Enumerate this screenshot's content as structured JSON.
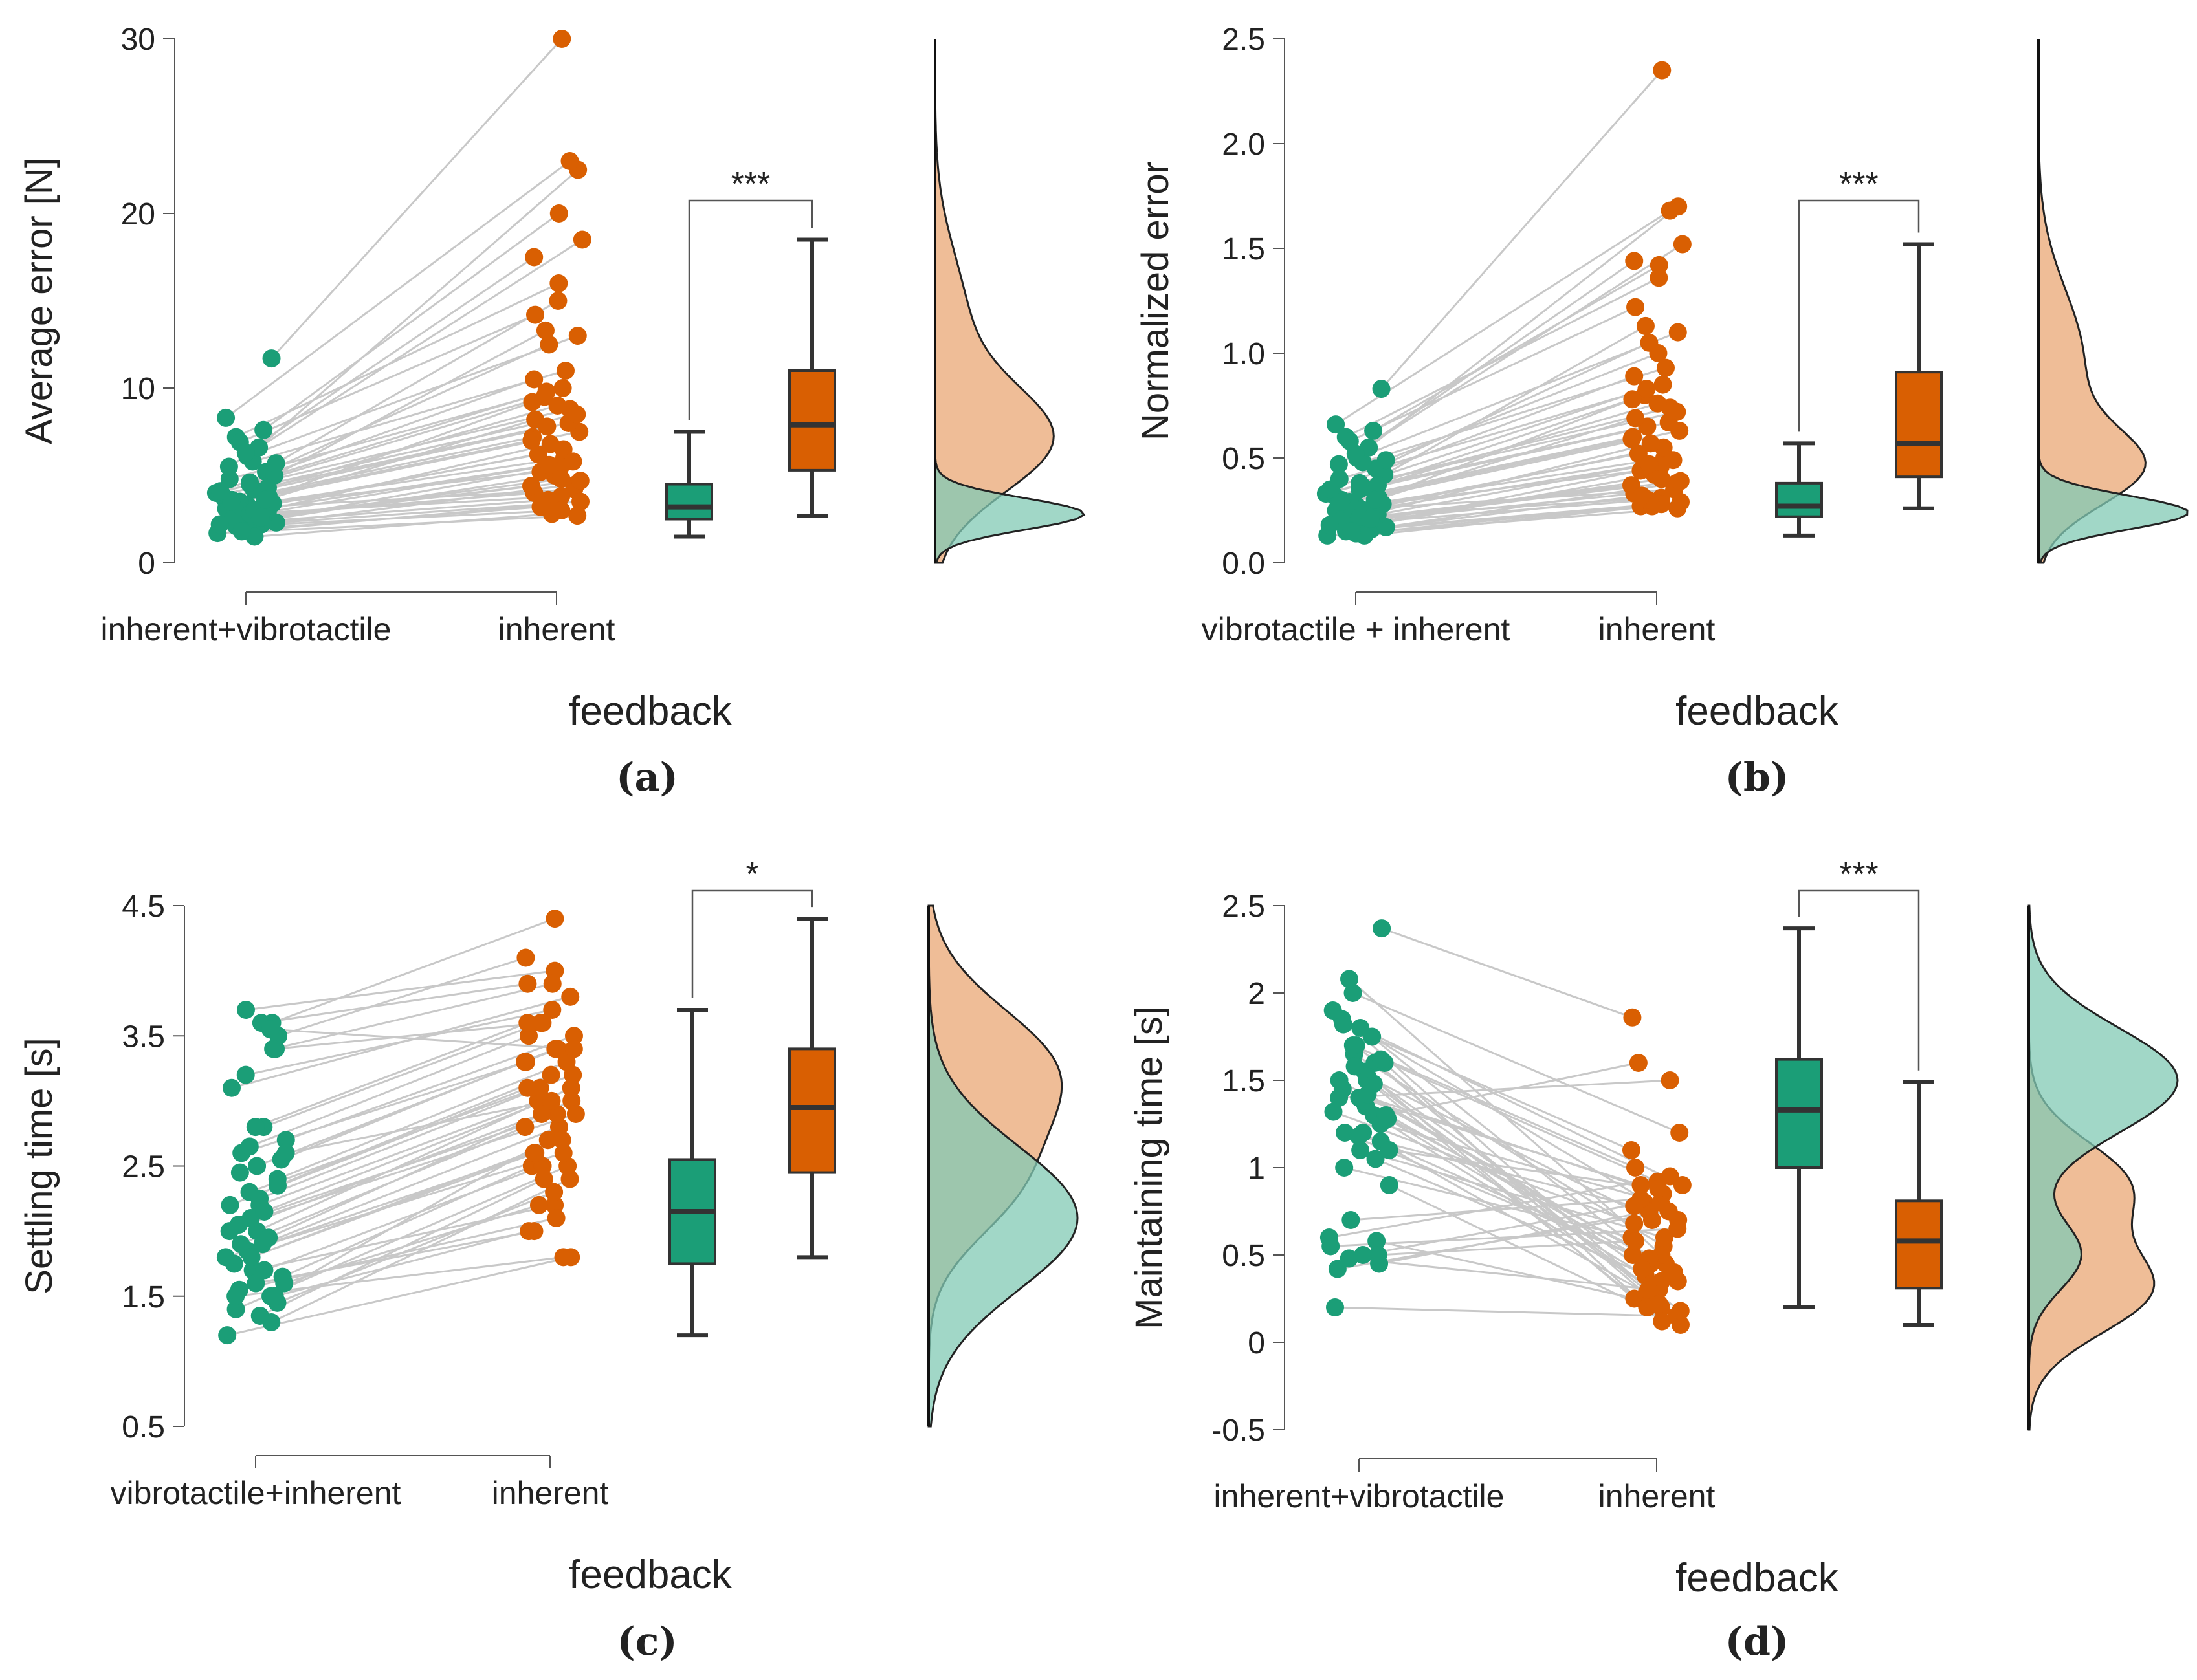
{
  "colors": {
    "group1": "#1b9e77",
    "group2": "#d95f02",
    "line": "#c8c8c8",
    "box_edge": "#333333",
    "axis": "#555555"
  },
  "chart_data": [
    {
      "type": "raincloud",
      "caption": "(a)",
      "ylabel": "Average error [N]",
      "xlabel": "feedback",
      "ylim": [
        0,
        30
      ],
      "yticks": [
        0,
        10,
        20,
        30
      ],
      "ytick_labels": [
        "0",
        "10",
        "20",
        "30"
      ],
      "categories": [
        "inherent+vibrotactile",
        "inherent"
      ],
      "significance": "***",
      "box": [
        {
          "min": 1.5,
          "q1": 2.5,
          "median": 3.2,
          "q3": 4.5,
          "max": 7.5
        },
        {
          "min": 2.7,
          "q1": 5.3,
          "median": 7.9,
          "q3": 11.0,
          "max": 18.5
        }
      ],
      "points": [
        [
          3.1,
          2.4,
          4.5,
          2.8,
          3.6,
          5.2,
          2.2,
          1.9,
          6.1,
          3.3,
          4.0,
          2.7,
          5.8,
          3.5,
          2.5,
          7.2,
          3.0,
          4.8,
          2.3,
          6.6,
          3.8,
          2.9,
          1.7,
          4.2,
          3.4,
          5.5,
          2.6,
          3.7,
          11.7,
          8.3,
          2.1,
          4.6,
          3.2,
          6.9,
          2.8,
          3.9,
          1.5,
          5.0,
          2.4,
          3.5,
          7.6,
          4.3,
          3.0,
          2.2,
          6.3,
          3.6,
          2.6,
          4.1,
          1.8,
          5.7
        ],
        [
          4.2,
          5.0,
          9.5,
          3.8,
          7.2,
          12.5,
          4.5,
          3.2,
          13.0,
          6.0,
          8.8,
          4.0,
          11.0,
          7.5,
          5.5,
          16.0,
          6.5,
          10.0,
          3.5,
          22.5,
          9.2,
          5.8,
          2.7,
          7.8,
          6.2,
          18.5,
          4.8,
          8.0,
          30.0,
          23.0,
          3.0,
          9.8,
          5.2,
          14.2,
          6.8,
          8.5,
          2.8,
          13.3,
          4.4,
          7.0,
          20.0,
          9.0,
          5.6,
          3.6,
          17.5,
          8.2,
          4.7,
          10.5,
          3.3,
          15.0
        ]
      ],
      "density": [
        {
          "peak": 2.8,
          "sd": 0.9,
          "weight": 1.0
        },
        {
          "peak": 7.0,
          "sd": 3.0,
          "weight": 0.75,
          "peak2": 14.0,
          "sd2": 4.0,
          "weight2": 0.2
        }
      ]
    },
    {
      "type": "raincloud",
      "caption": "(b)",
      "ylabel": "Normalized error",
      "xlabel": "feedback",
      "ylim": [
        0,
        2.5
      ],
      "yticks": [
        0,
        0.5,
        1.0,
        1.5,
        2.0,
        2.5
      ],
      "ytick_labels": [
        "0.0",
        "0.5",
        "1.0",
        "1.5",
        "2.0",
        "2.5"
      ],
      "categories": [
        "vibrotactile + inherent",
        "inherent"
      ],
      "significance": "***",
      "box": [
        {
          "min": 0.13,
          "q1": 0.22,
          "median": 0.27,
          "q3": 0.38,
          "max": 0.57
        },
        {
          "min": 0.26,
          "q1": 0.41,
          "median": 0.57,
          "q3": 0.91,
          "max": 1.52
        }
      ],
      "points": [
        [
          0.25,
          0.18,
          0.35,
          0.22,
          0.3,
          0.45,
          0.16,
          0.14,
          0.5,
          0.27,
          0.33,
          0.2,
          0.48,
          0.29,
          0.19,
          0.6,
          0.24,
          0.4,
          0.17,
          0.55,
          0.31,
          0.23,
          0.13,
          0.36,
          0.28,
          0.47,
          0.21,
          0.32,
          0.83,
          0.66,
          0.15,
          0.38,
          0.26,
          0.58,
          0.22,
          0.34,
          0.13,
          0.42,
          0.2,
          0.29,
          0.63,
          0.37,
          0.25,
          0.18,
          0.52,
          0.3,
          0.21,
          0.35,
          0.15,
          0.49
        ],
        [
          0.35,
          0.42,
          0.8,
          0.31,
          0.6,
          1.05,
          0.38,
          0.27,
          1.1,
          0.5,
          0.74,
          0.33,
          0.93,
          0.63,
          0.46,
          1.36,
          0.55,
          0.85,
          0.29,
          1.7,
          0.78,
          0.49,
          0.26,
          0.65,
          0.52,
          1.52,
          0.4,
          0.67,
          2.35,
          1.68,
          0.28,
          0.83,
          0.44,
          1.22,
          0.57,
          0.72,
          0.27,
          1.13,
          0.37,
          0.59,
          1.42,
          0.76,
          0.47,
          0.3,
          1.44,
          0.69,
          0.39,
          0.89,
          0.32,
          1.0
        ]
      ],
      "density": [
        {
          "peak": 0.24,
          "sd": 0.08,
          "weight": 1.0
        },
        {
          "peak": 0.45,
          "sd": 0.18,
          "weight": 0.6,
          "peak2": 0.95,
          "sd2": 0.35,
          "weight2": 0.3
        }
      ]
    },
    {
      "type": "raincloud",
      "caption": "(c)",
      "ylabel": "Settling time [s]",
      "xlabel": "feedback",
      "ylim": [
        0.5,
        4.5
      ],
      "yticks": [
        0.5,
        1.5,
        2.5,
        3.5,
        4.5
      ],
      "ytick_labels": [
        "0.5",
        "1.5",
        "2.5",
        "3.5",
        "4.5"
      ],
      "categories": [
        "vibrotactile+inherent",
        "inherent"
      ],
      "significance": "*",
      "box": [
        {
          "min": 1.2,
          "q1": 1.75,
          "median": 2.15,
          "q3": 2.55,
          "max": 3.7
        },
        {
          "min": 1.8,
          "q1": 2.45,
          "median": 2.95,
          "q3": 3.4,
          "max": 4.4
        }
      ],
      "points": [
        [
          1.4,
          1.5,
          2.2,
          1.7,
          2.6,
          3.4,
          1.3,
          1.6,
          2.0,
          2.5,
          1.8,
          3.6,
          1.9,
          2.3,
          1.45,
          3.2,
          2.1,
          1.55,
          2.7,
          1.95,
          3.5,
          2.4,
          1.2,
          2.8,
          1.65,
          2.05,
          3.6,
          1.75,
          2.55,
          1.5,
          3.7,
          2.25,
          1.85,
          2.65,
          1.35,
          3.1,
          2.15,
          1.6,
          2.45,
          1.9,
          3.4,
          2.35,
          1.7,
          2.0,
          2.8,
          1.5,
          3.55,
          2.2,
          1.8,
          2.6
        ],
        [
          2.5,
          2.7,
          3.0,
          2.2,
          3.3,
          3.6,
          2.4,
          2.0,
          3.1,
          3.4,
          2.6,
          3.9,
          2.8,
          3.2,
          2.3,
          3.7,
          2.9,
          2.1,
          3.5,
          3.0,
          4.1,
          3.3,
          1.8,
          3.6,
          2.5,
          2.9,
          4.4,
          2.7,
          3.4,
          1.8,
          4.0,
          3.1,
          2.6,
          3.5,
          2.4,
          3.8,
          3.0,
          2.2,
          3.3,
          2.8,
          3.9,
          3.2,
          2.5,
          2.9,
          3.6,
          2.0,
          3.4,
          3.1,
          2.6,
          3.0
        ]
      ],
      "density": [
        {
          "peak": 2.1,
          "sd": 0.55,
          "weight": 1.0
        },
        {
          "peak": 3.2,
          "sd": 0.5,
          "weight": 0.85,
          "peak2": 2.3,
          "sd2": 0.4,
          "weight2": 0.45
        }
      ]
    },
    {
      "type": "raincloud",
      "caption": "(d)",
      "ylabel": "Maintaining time [s]",
      "xlabel": "feedback",
      "ylim": [
        -0.5,
        2.5
      ],
      "yticks": [
        -0.5,
        0,
        0.5,
        1,
        1.5,
        2,
        2.5
      ],
      "ytick_labels": [
        "-0.5",
        "0",
        "0.5",
        "1",
        "1.5",
        "2",
        "2.5"
      ],
      "categories": [
        "inherent+vibrotactile",
        "inherent"
      ],
      "significance": "***",
      "box": [
        {
          "min": 0.2,
          "q1": 1.0,
          "median": 1.33,
          "q3": 1.62,
          "max": 2.37
        },
        {
          "min": 0.1,
          "q1": 0.31,
          "median": 0.58,
          "q3": 0.81,
          "max": 1.49
        }
      ],
      "points": [
        [
          1.5,
          1.3,
          0.5,
          1.7,
          1.2,
          0.45,
          1.6,
          1.4,
          1.8,
          1.1,
          0.6,
          1.55,
          1.35,
          2.0,
          1.25,
          0.48,
          1.65,
          1.45,
          0.9,
          1.75,
          2.37,
          1.15,
          0.55,
          1.5,
          1.3,
          1.85,
          1.05,
          0.42,
          1.6,
          1.4,
          2.08,
          1.2,
          0.7,
          1.7,
          1.38,
          0.2,
          1.52,
          1.28,
          1.82,
          1.0,
          0.58,
          1.62,
          1.42,
          1.9,
          1.18,
          0.5,
          1.48,
          1.32,
          1.58,
          1.1
        ],
        [
          0.4,
          0.3,
          0.8,
          0.2,
          0.5,
          0.75,
          0.15,
          0.9,
          0.35,
          0.6,
          0.95,
          0.25,
          0.45,
          1.2,
          0.8,
          0.3,
          0.55,
          0.85,
          0.1,
          0.7,
          1.86,
          0.4,
          0.65,
          0.2,
          1.6,
          0.9,
          0.35,
          0.75,
          0.12,
          1.5,
          0.5,
          0.28,
          0.82,
          1.0,
          0.45,
          0.15,
          0.7,
          0.38,
          1.1,
          0.6,
          0.22,
          0.92,
          0.48,
          0.3,
          0.78,
          0.58,
          0.18,
          0.68,
          0.42,
          0.88
        ]
      ],
      "density": [
        {
          "peak": 1.5,
          "sd": 0.3,
          "weight": 1.0,
          "peak2": 0.5,
          "sd2": 0.2,
          "weight2": 0.35
        },
        {
          "peak": 0.3,
          "sd": 0.25,
          "weight": 0.8,
          "peak2": 0.9,
          "sd2": 0.25,
          "weight2": 0.65
        }
      ]
    }
  ]
}
